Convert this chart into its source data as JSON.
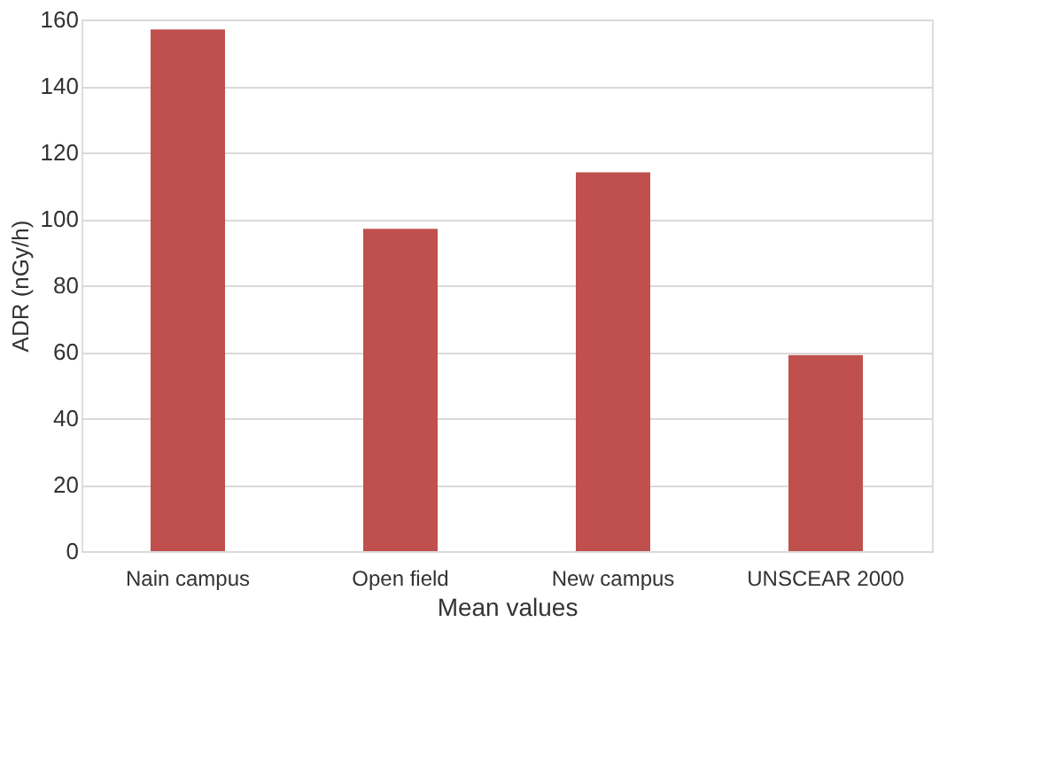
{
  "chart_data": {
    "type": "bar",
    "xlabel": "Mean values",
    "ylabel": "ADR (nGy/h)",
    "categories": [
      "Nain campus",
      "Open field",
      "New campus",
      "UNSCEAR 2000"
    ],
    "values": [
      157,
      97,
      114,
      59
    ],
    "color": "#c0504d",
    "ylim": [
      0,
      160
    ],
    "yticks": [
      0,
      20,
      40,
      60,
      80,
      100,
      120,
      140,
      160
    ],
    "grid": "y"
  }
}
